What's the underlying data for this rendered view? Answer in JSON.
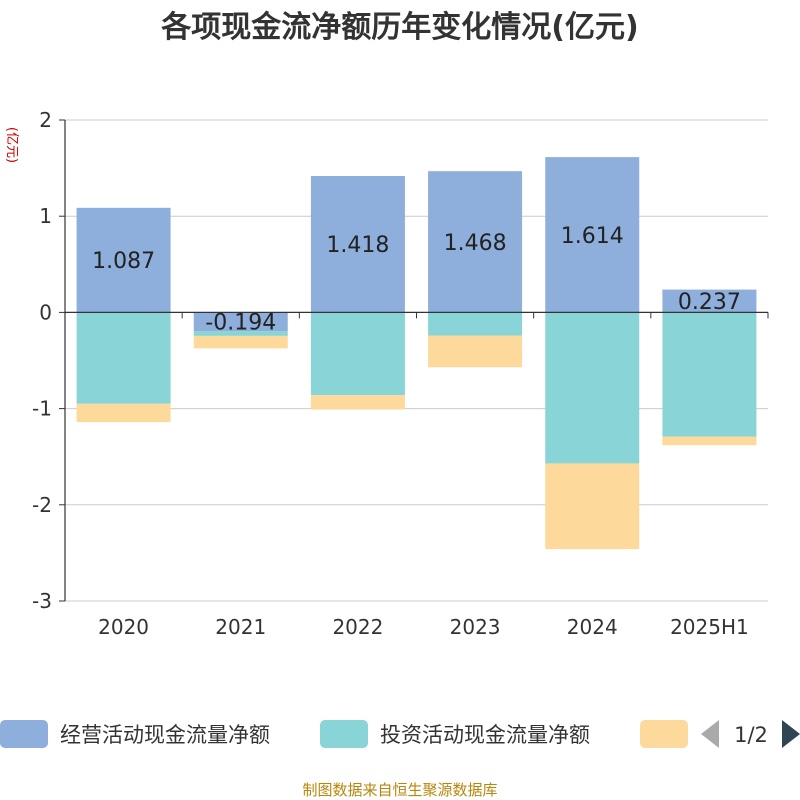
{
  "chart_data": {
    "type": "bar",
    "stacked": true,
    "title": "各项现金流净额历年变化情况(亿元)",
    "ylabel": "(亿元)",
    "categories": [
      "2020",
      "2021",
      "2022",
      "2023",
      "2024",
      "2025H1"
    ],
    "ylim": [
      -3,
      2
    ],
    "yticks": [
      2,
      1,
      0,
      -1,
      -2,
      -3
    ],
    "grid": true,
    "series": [
      {
        "name": "经营活动现金流量净额",
        "color": "#8eaedb",
        "values": [
          1.087,
          -0.194,
          1.418,
          1.468,
          1.614,
          0.237
        ],
        "labels": [
          "1.087",
          "-0.194",
          "1.418",
          "1.468",
          "1.614",
          "0.237"
        ]
      },
      {
        "name": "投资活动现金流量净额",
        "color": "#88d4d6",
        "values": [
          -0.95,
          -0.05,
          -0.86,
          -0.24,
          -1.57,
          -1.29
        ]
      },
      {
        "name": "",
        "color": "#fdd99b",
        "values": [
          -0.19,
          -0.13,
          -0.15,
          -0.33,
          -0.89,
          -0.09
        ]
      }
    ],
    "legend": {
      "placement": "bottom",
      "page": "1/2"
    }
  },
  "source": "制图数据来自恒生聚源数据库"
}
